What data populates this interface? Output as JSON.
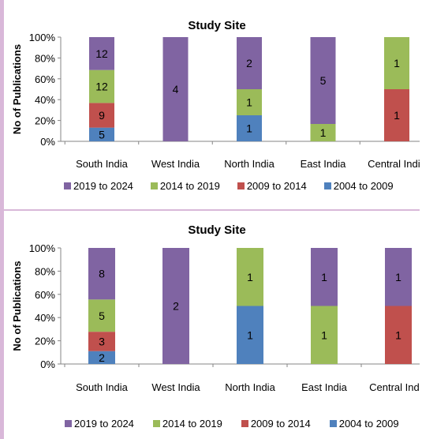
{
  "chart_data": [
    {
      "type": "bar",
      "stacked": "percent",
      "title": "Study Site",
      "ylabel": "No of Publications",
      "ylim": [
        0,
        100
      ],
      "yticks": [
        "0%",
        "20%",
        "40%",
        "60%",
        "80%",
        "100%"
      ],
      "categories": [
        "South India",
        "West India",
        "North India",
        "East India",
        "Central India"
      ],
      "series": [
        {
          "name": "2004 to 2009",
          "color": "#4f81bd",
          "values": [
            5,
            0,
            1,
            0,
            0
          ]
        },
        {
          "name": "2009 to 2014",
          "color": "#c0504d",
          "values": [
            9,
            0,
            0,
            0,
            1
          ]
        },
        {
          "name": "2014 to 2019",
          "color": "#9bbb59",
          "values": [
            12,
            0,
            1,
            1,
            1
          ]
        },
        {
          "name": "2019 to 2024",
          "color": "#8064a2",
          "values": [
            12,
            4,
            2,
            5,
            0
          ]
        }
      ],
      "legend_order": [
        "2019 to 2024",
        "2014 to 2019",
        "2009 to 2014",
        "2004 to 2009"
      ],
      "legend_position": "bottom",
      "grid": false
    },
    {
      "type": "bar",
      "stacked": "percent",
      "title": "Study Site",
      "ylabel": "No of Publications",
      "ylim": [
        0,
        100
      ],
      "yticks": [
        "0%",
        "20%",
        "40%",
        "60%",
        "80%",
        "100%"
      ],
      "categories": [
        "South India",
        "West India",
        "North India",
        "East India",
        "Central India"
      ],
      "series": [
        {
          "name": "2004 to 2009",
          "color": "#4f81bd",
          "values": [
            2,
            0,
            1,
            0,
            0
          ]
        },
        {
          "name": "2009 to 2014",
          "color": "#c0504d",
          "values": [
            3,
            0,
            0,
            0,
            1
          ]
        },
        {
          "name": "2014 to 2019",
          "color": "#9bbb59",
          "values": [
            5,
            0,
            1,
            1,
            0
          ]
        },
        {
          "name": "2019 to 2024",
          "color": "#8064a2",
          "values": [
            8,
            2,
            0,
            1,
            1
          ]
        }
      ],
      "legend_order": [
        "2019 to 2024",
        "2014 to 2019",
        "2009 to 2014",
        "2004 to 2009"
      ],
      "legend_position": "bottom",
      "grid": false
    }
  ]
}
